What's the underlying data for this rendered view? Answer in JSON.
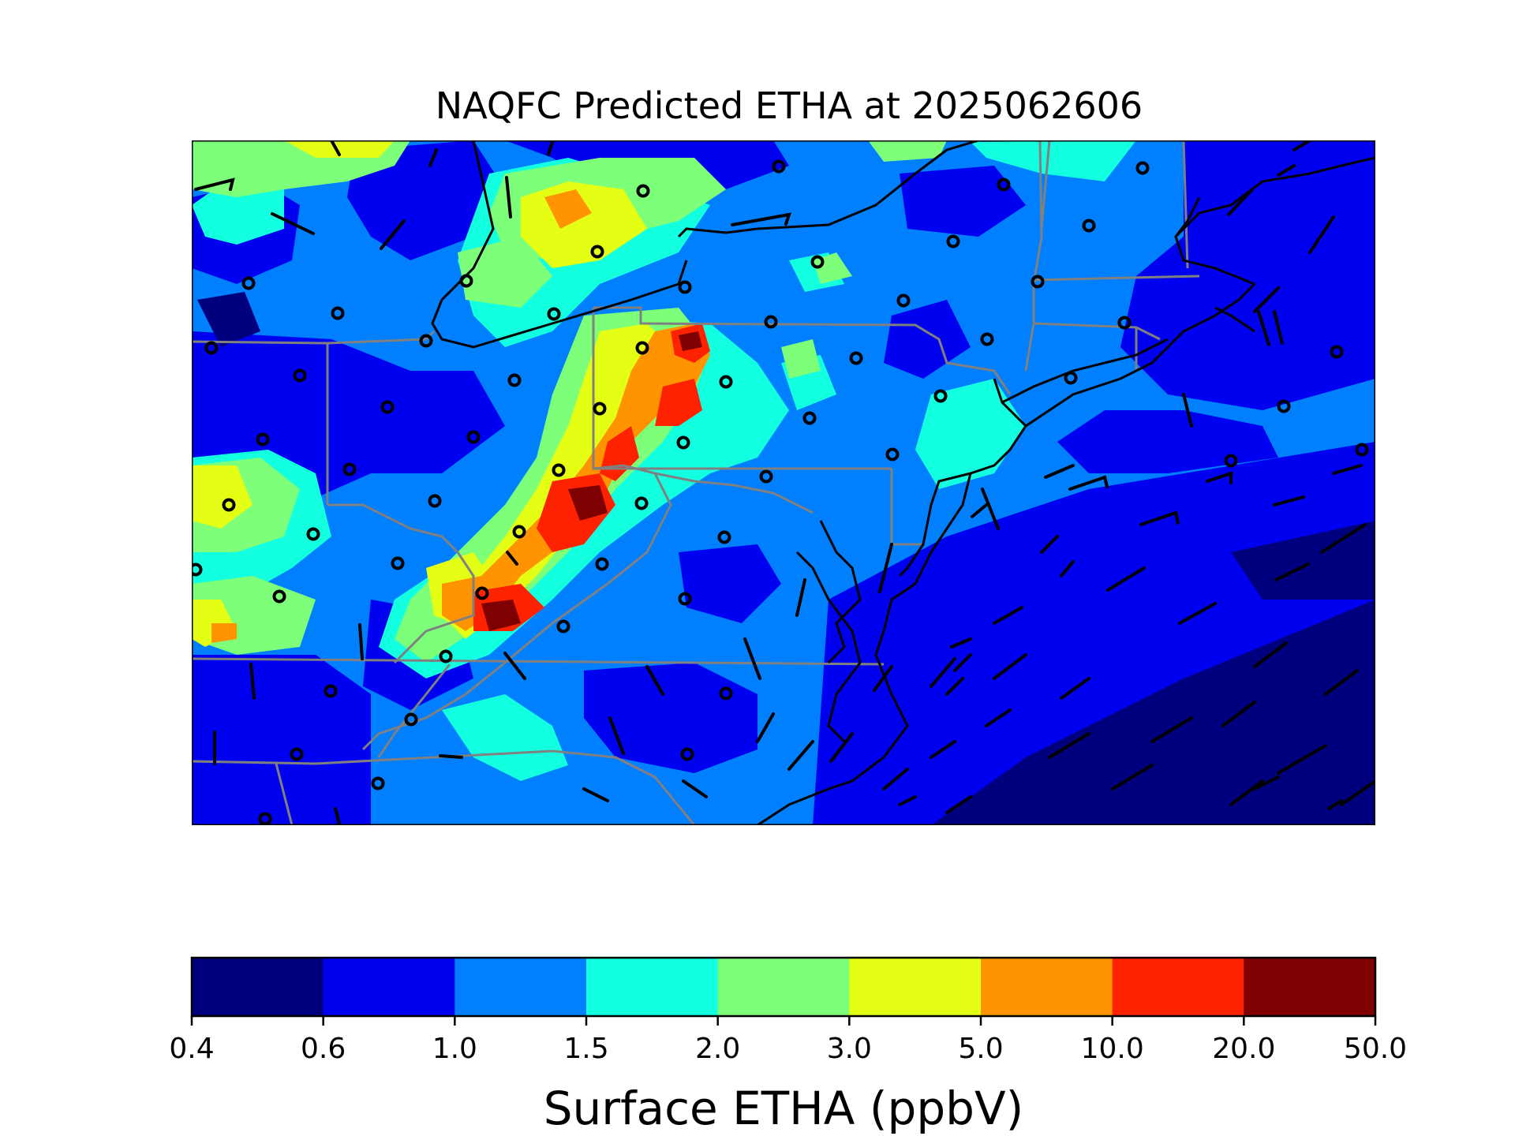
{
  "title": "NAQFC Predicted ETHA at 2025062606",
  "colorbar": {
    "label": "Surface ETHA (ppbV)",
    "ticks": [
      "0.4",
      "0.6",
      "1.0",
      "1.5",
      "2.0",
      "3.0",
      "5.0",
      "10.0",
      "20.0",
      "50.0"
    ],
    "colors": [
      "#00007f",
      "#0000f0",
      "#007fff",
      "#12ffe0",
      "#7dff7a",
      "#e4ff13",
      "#ff9400",
      "#ff2200",
      "#7f0000"
    ]
  },
  "map": {
    "region": "Northeastern United States / Mid-Atlantic",
    "background_color": "#007fff",
    "coastline_color": "#000000",
    "state_border_color": "#808080"
  }
}
